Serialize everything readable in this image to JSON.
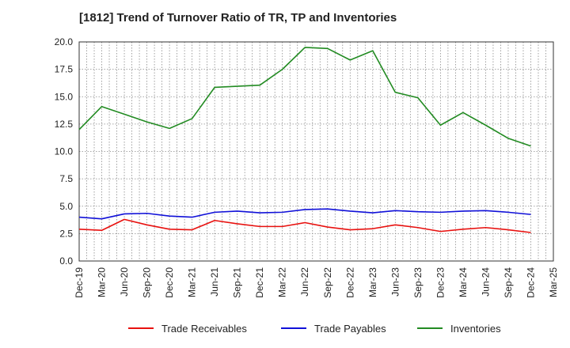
{
  "chart_data": {
    "type": "line",
    "title": "[1812]  Trend of Turnover Ratio of TR, TP and Inventories",
    "xlabel": "",
    "ylabel": "",
    "ylim": [
      0,
      20
    ],
    "yticks": [
      "0.0",
      "2.5",
      "5.0",
      "7.5",
      "10.0",
      "12.5",
      "15.0",
      "17.5",
      "20.0"
    ],
    "x_tick_labels": [
      "Dec-19",
      "Mar-20",
      "Jun-20",
      "Sep-20",
      "Dec-20",
      "Mar-21",
      "Jun-21",
      "Sep-21",
      "Dec-21",
      "Mar-22",
      "Jun-22",
      "Sep-22",
      "Dec-22",
      "Mar-23",
      "Jun-23",
      "Sep-23",
      "Dec-23",
      "Mar-24",
      "Jun-24",
      "Sep-24",
      "Dec-24",
      "Mar-25"
    ],
    "x": [
      "Dec-19",
      "Mar-20",
      "Jun-20",
      "Sep-20",
      "Dec-20",
      "Mar-21",
      "Jun-21",
      "Sep-21",
      "Dec-21",
      "Mar-22",
      "Jun-22",
      "Sep-22",
      "Dec-22",
      "Mar-23",
      "Jun-23",
      "Sep-23",
      "Dec-23",
      "Mar-24",
      "Jun-24",
      "Sep-24",
      "Dec-24"
    ],
    "grid": true,
    "legend_position": "bottom",
    "series": [
      {
        "name": "Trade Receivables",
        "color": "#e8110f",
        "values": [
          2.9,
          2.8,
          3.8,
          3.3,
          2.9,
          2.85,
          3.7,
          3.4,
          3.15,
          3.15,
          3.5,
          3.1,
          2.85,
          2.95,
          3.3,
          3.05,
          2.7,
          2.9,
          3.05,
          2.85,
          2.6
        ]
      },
      {
        "name": "Trade Payables",
        "color": "#1010d8",
        "values": [
          4.0,
          3.85,
          4.3,
          4.35,
          4.1,
          4.0,
          4.45,
          4.55,
          4.4,
          4.45,
          4.7,
          4.75,
          4.55,
          4.4,
          4.6,
          4.5,
          4.45,
          4.55,
          4.6,
          4.45,
          4.25
        ]
      },
      {
        "name": "Inventories",
        "color": "#228b22",
        "values": [
          12.0,
          14.1,
          13.4,
          12.7,
          12.1,
          13.0,
          15.85,
          15.95,
          16.05,
          17.5,
          19.5,
          19.4,
          18.35,
          19.2,
          15.4,
          14.9,
          12.4,
          13.55,
          12.4,
          11.2,
          10.5
        ]
      }
    ]
  }
}
